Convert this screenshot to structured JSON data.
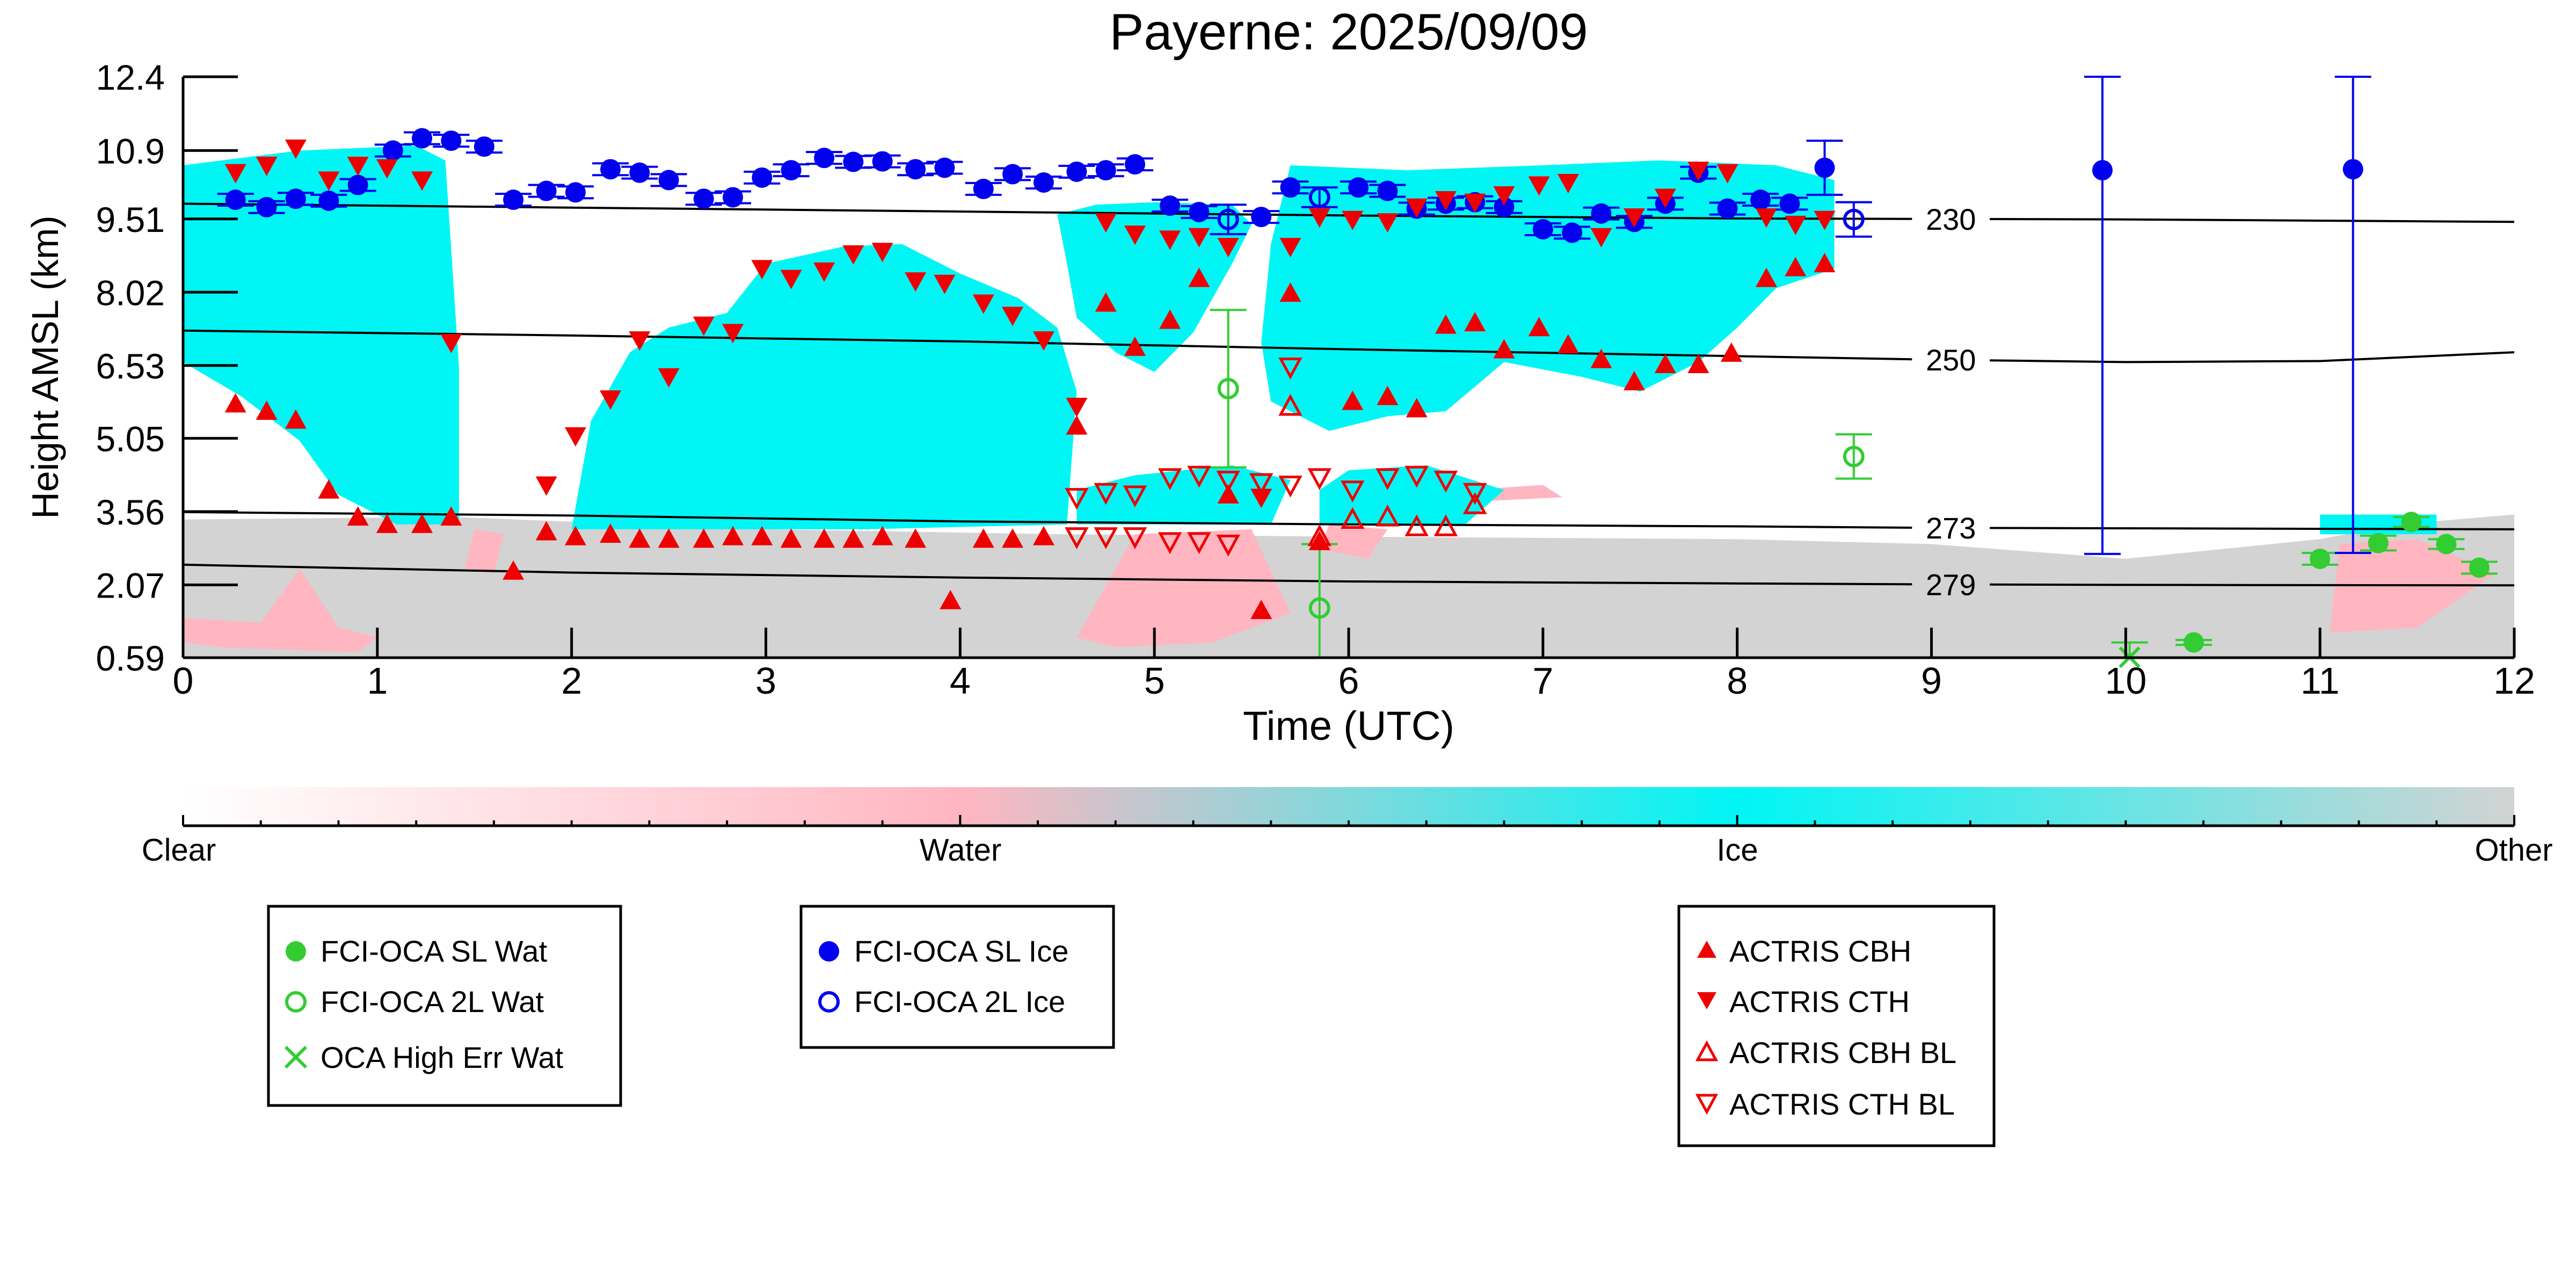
{
  "chart_data": {
    "type": "scatter",
    "title": "Payerne: 2025/09/09",
    "xlabel": "Time (UTC)",
    "ylabel": "Height AMSL (km)",
    "xlim": [
      0,
      12
    ],
    "ylim": [
      0.59,
      12.4
    ],
    "x_ticks": [
      "0",
      "1",
      "2",
      "3",
      "4",
      "5",
      "6",
      "7",
      "8",
      "9",
      "10",
      "11",
      "12"
    ],
    "y_ticks": [
      "0.59",
      "2.07",
      "3.56",
      "5.05",
      "6.53",
      "8.02",
      "9.51",
      "10.9",
      "12.4"
    ],
    "background": "cloud classification curtain (Clear / Water / Ice / Other)",
    "colorbar": {
      "labels": [
        "Clear",
        "Water",
        "Ice",
        "Other"
      ],
      "colors": [
        "#ffffff",
        "#ffb6c1",
        "#00f5f5",
        "#d3d3d3"
      ]
    },
    "isotherms": [
      {
        "label": "230",
        "x": [
          0,
          2,
          4,
          6,
          8,
          10,
          12
        ],
        "y": [
          9.82,
          9.74,
          9.66,
          9.58,
          9.52,
          9.5,
          9.45
        ]
      },
      {
        "label": "250",
        "x": [
          0,
          2,
          4,
          6,
          8,
          9,
          10,
          11,
          12
        ],
        "y": [
          7.24,
          7.14,
          7.02,
          6.86,
          6.72,
          6.65,
          6.6,
          6.62,
          6.8
        ]
      },
      {
        "label": "273",
        "x": [
          0,
          2,
          4,
          6,
          8,
          9,
          10,
          12
        ],
        "y": [
          3.55,
          3.48,
          3.36,
          3.3,
          3.26,
          3.23,
          3.22,
          3.2
        ]
      },
      {
        "label": "279",
        "x": [
          0,
          2,
          4,
          6,
          8,
          9,
          10,
          12
        ],
        "y": [
          2.48,
          2.32,
          2.22,
          2.14,
          2.1,
          2.08,
          2.07,
          2.06
        ]
      }
    ],
    "series": [
      {
        "name": "FCI-OCA SL Wat",
        "color": "#33cc33",
        "marker": "filled-circle",
        "x": [
          10.35,
          11.0,
          11.3,
          11.47,
          11.65,
          11.82
        ],
        "y": [
          0.9,
          2.6,
          2.92,
          3.35,
          2.9,
          2.42
        ],
        "err": [
          0.05,
          0.12,
          0.15,
          0.1,
          0.1,
          0.12
        ]
      },
      {
        "name": "FCI-OCA 2L Wat",
        "color": "#33cc33",
        "marker": "open-circle",
        "x": [
          5.38,
          8.6,
          5.85
        ],
        "y": [
          6.06,
          4.68,
          1.6
        ],
        "err": [
          1.6,
          0.45,
          1.3
        ]
      },
      {
        "name": "OCA High Err Wat",
        "color": "#33cc33",
        "marker": "cross",
        "x": [
          10.02
        ],
        "y": [
          0.6
        ],
        "err": [
          0.3
        ]
      },
      {
        "name": "FCI-OCA SL Ice",
        "color": "#0000ee",
        "marker": "filled-circle",
        "x": [
          0.27,
          0.43,
          0.58,
          0.75,
          0.9,
          1.08,
          1.23,
          1.38,
          1.55,
          1.7,
          1.87,
          2.02,
          2.2,
          2.35,
          2.5,
          2.68,
          2.83,
          2.98,
          3.13,
          3.3,
          3.45,
          3.6,
          3.77,
          3.92,
          4.12,
          4.27,
          4.43,
          4.6,
          4.75,
          4.9,
          5.08,
          5.23,
          5.55,
          5.7,
          6.05,
          6.2,
          6.35,
          6.5,
          6.65,
          6.8,
          7.0,
          7.15,
          7.3,
          7.47,
          7.63,
          7.8,
          7.95,
          8.12,
          8.27,
          8.45,
          9.88,
          11.17
        ],
        "y": [
          9.9,
          9.75,
          9.92,
          9.88,
          10.2,
          10.9,
          11.15,
          11.1,
          10.98,
          9.9,
          10.08,
          10.05,
          10.52,
          10.45,
          10.3,
          9.92,
          9.95,
          10.35,
          10.5,
          10.75,
          10.67,
          10.68,
          10.52,
          10.55,
          10.12,
          10.42,
          10.25,
          10.47,
          10.5,
          10.62,
          9.78,
          9.65,
          9.55,
          10.15,
          10.15,
          10.08,
          9.72,
          9.82,
          9.85,
          9.75,
          9.3,
          9.23,
          9.62,
          9.45,
          9.82,
          10.45,
          9.72,
          9.9,
          9.82,
          10.55,
          10.5,
          10.52
        ],
        "err": [
          0.12,
          0.12,
          0.12,
          0.12,
          0.12,
          0.12,
          0.12,
          0.12,
          0.12,
          0.12,
          0.12,
          0.12,
          0.12,
          0.12,
          0.12,
          0.12,
          0.12,
          0.12,
          0.12,
          0.12,
          0.12,
          0.12,
          0.12,
          0.12,
          0.12,
          0.12,
          0.12,
          0.12,
          0.12,
          0.12,
          0.12,
          0.12,
          0.12,
          0.12,
          0.12,
          0.12,
          0.12,
          0.12,
          0.12,
          0.12,
          0.12,
          0.12,
          0.12,
          0.12,
          0.12,
          0.12,
          0.12,
          0.12,
          0.12,
          0.55,
          7.8,
          7.8
        ]
      },
      {
        "name": "FCI-OCA 2L Ice",
        "color": "#0000ee",
        "marker": "open-circle",
        "x": [
          5.38,
          5.85,
          8.6
        ],
        "y": [
          9.5,
          9.95,
          9.5
        ],
        "err": [
          0.3,
          0.2,
          0.35
        ]
      },
      {
        "name": "ACTRIS CBH",
        "color": "#ee0000",
        "marker": "triangle-up",
        "x": [
          0.27,
          0.43,
          0.58,
          0.75,
          0.9,
          1.05,
          1.23,
          1.38,
          1.7,
          1.87,
          2.02,
          2.2,
          2.35,
          2.5,
          2.68,
          2.83,
          2.98,
          3.13,
          3.3,
          3.45,
          3.6,
          3.77,
          3.95,
          4.12,
          4.27,
          4.43,
          4.6,
          4.75,
          4.9,
          5.08,
          5.23,
          5.38,
          5.55,
          5.7,
          5.85,
          6.02,
          6.2,
          6.35,
          6.5,
          6.65,
          6.8,
          6.98,
          7.13,
          7.3,
          7.47,
          7.63,
          7.8,
          7.97,
          8.15,
          8.3,
          8.45
        ],
        "y": [
          5.75,
          5.6,
          5.42,
          4.0,
          3.45,
          3.3,
          3.3,
          3.45,
          2.35,
          3.15,
          3.05,
          3.1,
          3.0,
          3.0,
          3.0,
          3.05,
          3.05,
          3.0,
          3.0,
          3.0,
          3.05,
          3.0,
          1.75,
          3.0,
          3.0,
          3.05,
          5.3,
          7.8,
          6.9,
          7.45,
          8.3,
          3.9,
          1.55,
          8.0,
          2.95,
          5.8,
          5.9,
          5.65,
          7.35,
          7.4,
          6.85,
          7.3,
          6.95,
          6.65,
          6.2,
          6.55,
          6.55,
          6.78,
          8.3,
          8.52,
          8.6
        ],
        "err": []
      },
      {
        "name": "ACTRIS CTH",
        "color": "#ee0000",
        "marker": "triangle-down",
        "x": [
          0.27,
          0.43,
          0.58,
          0.75,
          0.9,
          1.05,
          1.23,
          1.38,
          1.87,
          2.02,
          2.2,
          2.35,
          2.5,
          2.68,
          2.83,
          2.98,
          3.13,
          3.3,
          3.45,
          3.6,
          3.77,
          3.92,
          4.12,
          4.27,
          4.43,
          4.6,
          4.75,
          4.9,
          5.08,
          5.23,
          5.38,
          5.55,
          5.7,
          5.85,
          6.02,
          6.2,
          6.35,
          6.5,
          6.65,
          6.8,
          6.98,
          7.13,
          7.3,
          7.47,
          7.63,
          7.8,
          7.95,
          8.15,
          8.3,
          8.45
        ],
        "y": [
          10.45,
          10.6,
          10.95,
          10.3,
          10.6,
          10.55,
          10.3,
          7.0,
          4.1,
          5.1,
          5.85,
          7.05,
          6.3,
          7.35,
          7.2,
          8.5,
          8.3,
          8.45,
          8.8,
          8.85,
          8.25,
          8.2,
          7.8,
          7.55,
          7.05,
          5.7,
          9.45,
          9.2,
          9.1,
          9.15,
          8.95,
          3.85,
          8.95,
          9.55,
          9.5,
          9.45,
          9.75,
          9.9,
          9.85,
          10.0,
          10.2,
          10.25,
          9.15,
          9.55,
          9.95,
          10.5,
          10.45,
          9.55,
          9.4,
          9.5
        ],
        "err": []
      },
      {
        "name": "ACTRIS CBH BL",
        "color": "#ee0000",
        "marker": "open-triangle-up",
        "x": [
          5.7,
          5.85,
          6.02,
          6.2,
          6.35,
          6.5,
          6.65
        ],
        "y": [
          5.7,
          3.05,
          3.4,
          3.45,
          3.25,
          3.25,
          3.7
        ],
        "err": []
      },
      {
        "name": "ACTRIS CTH BL",
        "color": "#ee0000",
        "marker": "open-triangle-down",
        "x": [
          4.6,
          4.75,
          4.9,
          5.08,
          5.23,
          5.38,
          5.55,
          5.7,
          5.85,
          6.02,
          6.2,
          6.35,
          6.5,
          6.65,
          4.6,
          4.75,
          4.9,
          5.08,
          5.23,
          5.38,
          5.7
        ],
        "y": [
          3.85,
          3.95,
          3.9,
          4.25,
          4.3,
          4.2,
          4.15,
          6.5,
          4.25,
          4.0,
          4.25,
          4.3,
          4.2,
          3.95,
          3.05,
          3.05,
          3.05,
          2.95,
          2.95,
          2.9,
          4.1
        ],
        "err": []
      }
    ]
  }
}
